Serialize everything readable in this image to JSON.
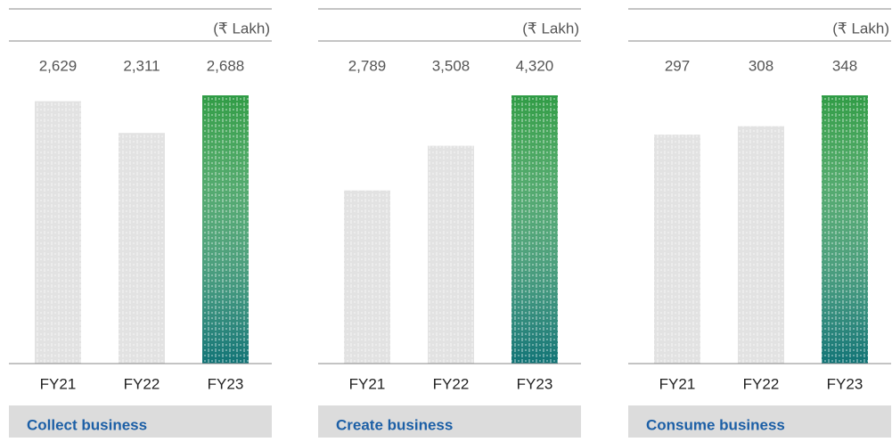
{
  "chart_data": [
    {
      "type": "bar",
      "title": "Collect business",
      "subtitle": "(₹ Lakh)",
      "categories": [
        "FY21",
        "FY22",
        "FY23"
      ],
      "values": [
        2629,
        2311,
        2688
      ],
      "value_labels": [
        "2,629",
        "2,311",
        "2,688"
      ],
      "colors": [
        "#e2e2e2",
        "#e2e2e2",
        "#2f9b45"
      ]
    },
    {
      "type": "bar",
      "title": "Create business",
      "subtitle": "(₹ Lakh)",
      "categories": [
        "FY21",
        "FY22",
        "FY23"
      ],
      "values": [
        2789,
        3508,
        4320
      ],
      "value_labels": [
        "2,789",
        "3,508",
        "4,320"
      ],
      "colors": [
        "#e2e2e2",
        "#e2e2e2",
        "#2f9b45"
      ]
    },
    {
      "type": "bar",
      "title": "Consume business",
      "subtitle": "(₹ Lakh)",
      "categories": [
        "FY21",
        "FY22",
        "FY23"
      ],
      "values": [
        297,
        308,
        348
      ],
      "value_labels": [
        "297",
        "308",
        "348"
      ],
      "colors": [
        "#e2e2e2",
        "#e2e2e2",
        "#2f9b45"
      ]
    }
  ]
}
